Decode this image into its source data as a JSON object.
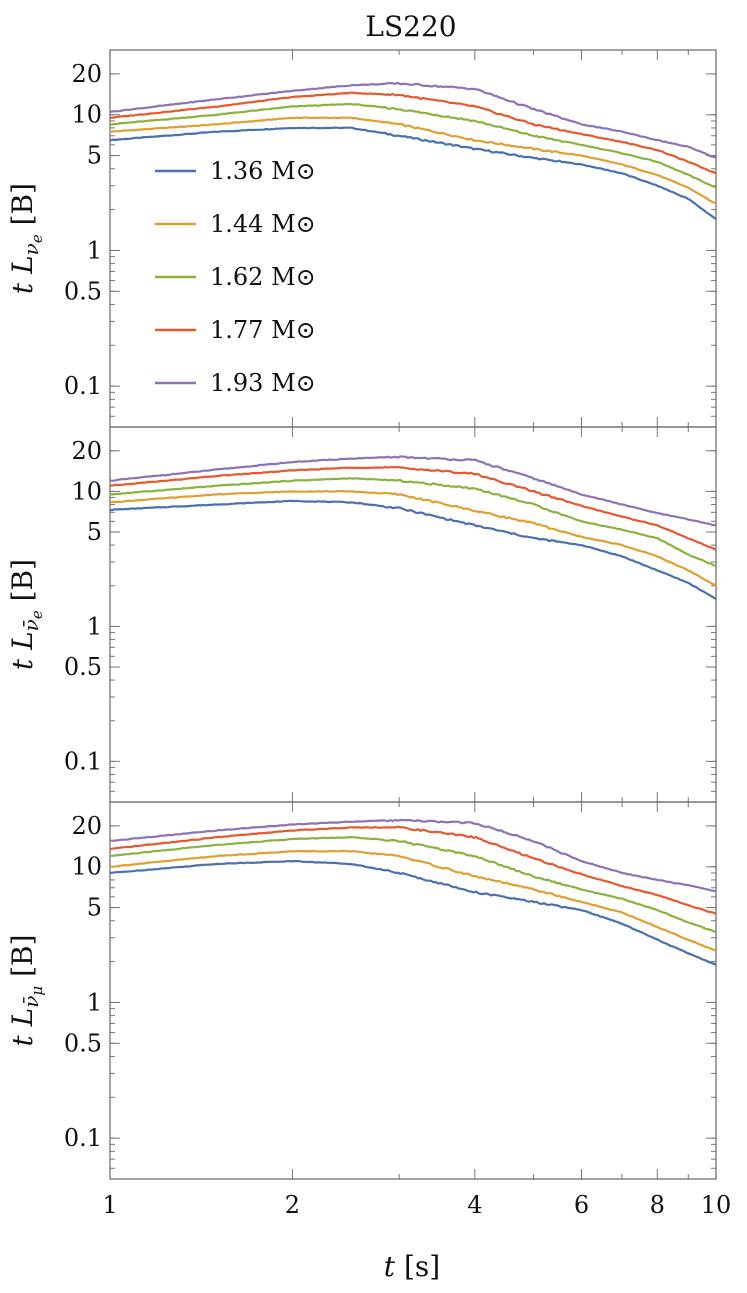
{
  "chart_data": {
    "type": "line",
    "title": "LS220",
    "xlabel": "t [s]",
    "x_scale": "log",
    "y_scale": "log",
    "xlim": [
      1,
      10
    ],
    "ylim": [
      0.05,
      30
    ],
    "x_ticks": [
      {
        "value": 1,
        "label": "1"
      },
      {
        "value": 2,
        "label": "2"
      },
      {
        "value": 4,
        "label": "4"
      },
      {
        "value": 6,
        "label": "6"
      },
      {
        "value": 8,
        "label": "8"
      },
      {
        "value": 10,
        "label": "10"
      }
    ],
    "y_ticks": [
      {
        "value": 20,
        "label": "20"
      },
      {
        "value": 10,
        "label": "10"
      },
      {
        "value": 5,
        "label": "5"
      },
      {
        "value": 1,
        "label": "1"
      },
      {
        "value": 0.5,
        "label": "0.5"
      },
      {
        "value": 0.1,
        "label": "0.1"
      }
    ],
    "legend_position": "upper-left of top panel",
    "colors": {
      "1.36": "#4a70b0",
      "1.44": "#e0a030",
      "1.62": "#8ab33e",
      "1.77": "#e8582e",
      "1.93": "#8c73b8"
    },
    "panels": [
      {
        "ylabel": "t L_νe [B]",
        "series": [
          {
            "name": "1.36 M⊙",
            "color_key": "1.36",
            "x": [
              1,
              1.5,
              2,
              2.5,
              3,
              4,
              5,
              6,
              7,
              8,
              9,
              10
            ],
            "y": [
              6.5,
              7.5,
              8.0,
              8.0,
              7.0,
              5.6,
              4.8,
              4.3,
              3.7,
              3.0,
              2.4,
              1.7
            ]
          },
          {
            "name": "1.44 M⊙",
            "color_key": "1.44",
            "x": [
              1,
              1.5,
              2,
              2.5,
              3,
              4,
              5,
              6,
              7,
              8,
              9,
              10
            ],
            "y": [
              7.5,
              8.5,
              9.5,
              9.5,
              8.5,
              6.5,
              5.6,
              5.0,
              4.3,
              3.6,
              2.9,
              2.2
            ]
          },
          {
            "name": "1.62 M⊙",
            "color_key": "1.62",
            "x": [
              1,
              1.5,
              2,
              2.5,
              3,
              4,
              5,
              6,
              7,
              8,
              9,
              10
            ],
            "y": [
              8.5,
              10,
              11.5,
              12,
              11,
              9,
              7,
              6,
              5.2,
              4.5,
              3.6,
              2.9
            ]
          },
          {
            "name": "1.77 M⊙",
            "color_key": "1.77",
            "x": [
              1,
              1.5,
              2,
              2.5,
              3,
              4,
              5,
              6,
              7,
              8,
              9,
              10
            ],
            "y": [
              9.5,
              11.5,
              13.5,
              14.5,
              14.0,
              11.5,
              8.5,
              7.2,
              6.3,
              5.5,
              4.5,
              3.7
            ]
          },
          {
            "name": "1.93 M⊙",
            "color_key": "1.93",
            "x": [
              1,
              1.5,
              2,
              2.5,
              3,
              4,
              5,
              6,
              7,
              8,
              9,
              10
            ],
            "y": [
              10.5,
              13,
              15,
              16.5,
              17,
              15.5,
              11,
              8.5,
              7.5,
              6.5,
              5.8,
              4.8
            ]
          }
        ]
      },
      {
        "ylabel": "t L_ν̄e [B]",
        "series": [
          {
            "name": "1.36 M⊙",
            "color_key": "1.36",
            "x": [
              1,
              1.5,
              2,
              2.5,
              3,
              4,
              5,
              6,
              7,
              8,
              9,
              10
            ],
            "y": [
              7.3,
              8.0,
              8.5,
              8.3,
              7.5,
              5.6,
              4.5,
              4.0,
              3.3,
              2.6,
              2.1,
              1.6
            ]
          },
          {
            "name": "1.44 M⊙",
            "color_key": "1.44",
            "x": [
              1,
              1.5,
              2,
              2.5,
              3,
              4,
              5,
              6,
              7,
              8,
              9,
              10
            ],
            "y": [
              8.3,
              9.5,
              10,
              10,
              9.5,
              7.2,
              5.8,
              4.6,
              4.0,
              3.3,
              2.6,
              2.0
            ]
          },
          {
            "name": "1.62 M⊙",
            "color_key": "1.62",
            "x": [
              1,
              1.5,
              2,
              2.5,
              3,
              4,
              5,
              6,
              7,
              8,
              9,
              10
            ],
            "y": [
              9.5,
              11,
              12,
              12.5,
              12,
              10.5,
              8.0,
              6.0,
              5.2,
              4.5,
              3.4,
              2.8
            ]
          },
          {
            "name": "1.77 M⊙",
            "color_key": "1.77",
            "x": [
              1,
              1.5,
              2,
              2.5,
              3,
              4,
              5,
              6,
              7,
              8,
              9,
              10
            ],
            "y": [
              11,
              13,
              14.3,
              15,
              15,
              13.5,
              10,
              7.8,
              6.5,
              5.6,
              4.5,
              3.7
            ]
          },
          {
            "name": "1.93 M⊙",
            "color_key": "1.93",
            "x": [
              1,
              1.5,
              2,
              2.5,
              3,
              4,
              5,
              6,
              7,
              8,
              9,
              10
            ],
            "y": [
              12,
              14.5,
              16.5,
              17.5,
              18,
              17,
              12.5,
              9.5,
              8.0,
              6.9,
              6.2,
              5.6
            ]
          }
        ]
      },
      {
        "ylabel": "t L_ν̄μ [B]",
        "series": [
          {
            "name": "1.36 M⊙",
            "color_key": "1.36",
            "x": [
              1,
              1.5,
              2,
              2.5,
              3,
              4,
              5,
              6,
              7,
              8,
              9,
              10
            ],
            "y": [
              9.0,
              10.5,
              11,
              10.5,
              9.0,
              6.5,
              5.5,
              4.8,
              3.8,
              2.9,
              2.3,
              1.9
            ]
          },
          {
            "name": "1.44 M⊙",
            "color_key": "1.44",
            "x": [
              1,
              1.5,
              2,
              2.5,
              3,
              4,
              5,
              6,
              7,
              8,
              9,
              10
            ],
            "y": [
              10,
              12,
              13,
              13,
              12,
              8.5,
              6.8,
              5.5,
              4.6,
              3.6,
              2.9,
              2.4
            ]
          },
          {
            "name": "1.62 M⊙",
            "color_key": "1.62",
            "x": [
              1,
              1.5,
              2,
              2.5,
              3,
              4,
              5,
              6,
              7,
              8,
              9,
              10
            ],
            "y": [
              12,
              14.5,
              16,
              16.5,
              15.5,
              12,
              8.5,
              6.8,
              5.8,
              4.8,
              3.9,
              3.3
            ]
          },
          {
            "name": "1.77 M⊙",
            "color_key": "1.77",
            "x": [
              1,
              1.5,
              2,
              2.5,
              3,
              4,
              5,
              6,
              7,
              8,
              9,
              10
            ],
            "y": [
              13.5,
              16.5,
              18.5,
              19.5,
              19.5,
              16.5,
              11.5,
              8.8,
              7.2,
              6.2,
              5.2,
              4.5
            ]
          },
          {
            "name": "1.93 M⊙",
            "color_key": "1.93",
            "x": [
              1,
              1.5,
              2,
              2.5,
              3,
              4,
              5,
              6,
              7,
              8,
              9,
              10
            ],
            "y": [
              15.5,
              18.5,
              20.5,
              21.5,
              22,
              21,
              15.5,
              11,
              9.0,
              8.0,
              7.3,
              6.6
            ]
          }
        ]
      }
    ]
  }
}
